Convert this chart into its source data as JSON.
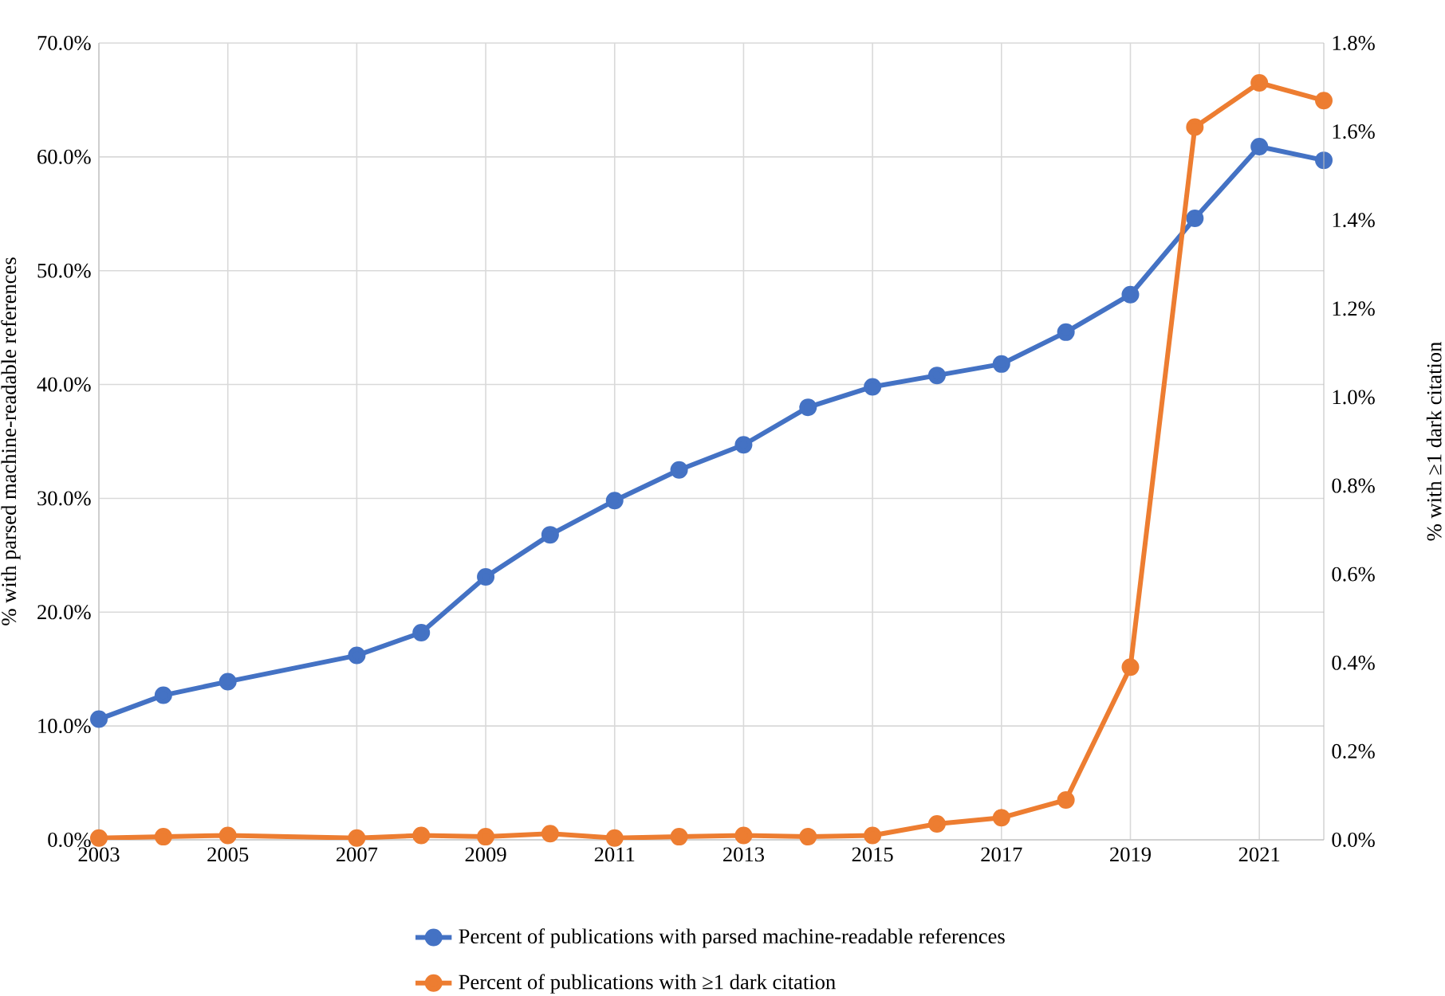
{
  "chart_data": {
    "type": "line",
    "ylabel": "% with parsed machine-readable references",
    "y2label": "% with ≥1 dark citation",
    "x": [
      2003,
      2004,
      2005,
      2007,
      2008,
      2009,
      2010,
      2011,
      2012,
      2013,
      2014,
      2015,
      2016,
      2017,
      2018,
      2019,
      2020,
      2021,
      2022
    ],
    "series": [
      {
        "name": "Percent of publications with parsed machine-readable references",
        "color": "#4472c4",
        "values": [
          10.6,
          12.7,
          13.9,
          16.2,
          18.2,
          23.1,
          26.8,
          29.8,
          32.5,
          34.7,
          38.0,
          39.8,
          40.8,
          41.8,
          44.6,
          47.9,
          54.6,
          60.9,
          59.7
        ]
      },
      {
        "name": "Percent of publications with ≥1 dark citation",
        "color": "#ed7d31",
        "axis": "y2",
        "values": [
          0.004,
          0.007,
          0.01,
          0.004,
          0.01,
          0.007,
          0.014,
          0.004,
          0.007,
          0.01,
          0.007,
          0.01,
          0.036,
          0.05,
          0.09,
          0.39,
          1.61,
          1.71,
          1.67
        ]
      }
    ],
    "xlim": [
      2003,
      2022
    ],
    "xticks": [
      2003,
      2005,
      2007,
      2009,
      2011,
      2013,
      2015,
      2017,
      2019,
      2021
    ],
    "ylim": [
      0,
      70
    ],
    "yticks": [
      {
        "value": 0,
        "label": "0.0%"
      },
      {
        "value": 10,
        "label": "10.0%"
      },
      {
        "value": 20,
        "label": "20.0%"
      },
      {
        "value": 30,
        "label": "30.0%"
      },
      {
        "value": 40,
        "label": "40.0%"
      },
      {
        "value": 50,
        "label": "50.0%"
      },
      {
        "value": 60,
        "label": "60.0%"
      },
      {
        "value": 70,
        "label": "70.0%"
      }
    ],
    "y2lim": [
      0,
      1.8
    ],
    "y2ticks": [
      {
        "value": 0,
        "label": "0.0%"
      },
      {
        "value": 0.2,
        "label": "0.2%"
      },
      {
        "value": 0.4,
        "label": "0.4%"
      },
      {
        "value": 0.6,
        "label": "0.6%"
      },
      {
        "value": 0.8,
        "label": "0.8%"
      },
      {
        "value": 1.0,
        "label": "1.0%"
      },
      {
        "value": 1.2,
        "label": "1.2%"
      },
      {
        "value": 1.4,
        "label": "1.4%"
      },
      {
        "value": 1.6,
        "label": "1.6%"
      },
      {
        "value": 1.8,
        "label": "1.8%"
      }
    ],
    "grid": true,
    "legend": "bottom",
    "marker": "circle",
    "line_style": "solid"
  }
}
